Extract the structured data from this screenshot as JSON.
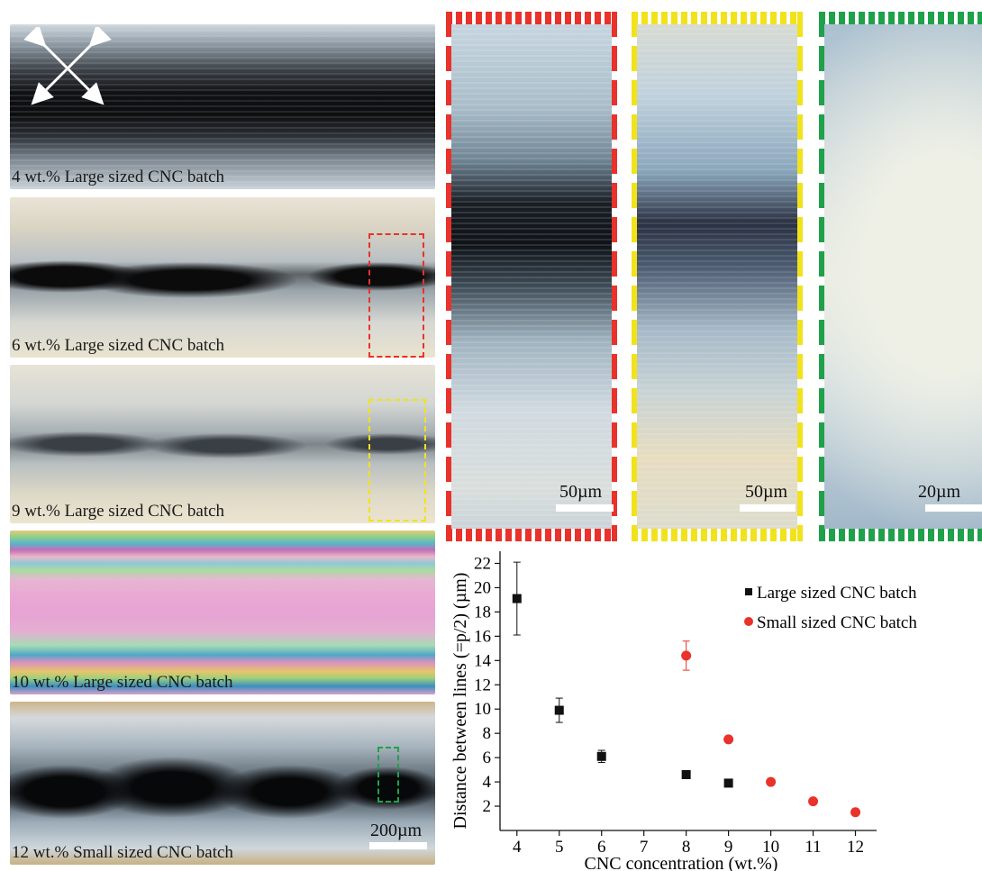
{
  "panels": [
    {
      "caption": "4 wt.% Large sized CNC batch"
    },
    {
      "caption": "6 wt.% Large sized CNC batch"
    },
    {
      "caption": "9 wt.% Large sized CNC batch"
    },
    {
      "caption": "10 wt.% Large sized CNC batch"
    },
    {
      "caption": "12 wt.% Small sized CNC batch"
    }
  ],
  "scalebars": {
    "main": "200µm",
    "red": "50µm",
    "yellow": "50µm",
    "green": "20µm"
  },
  "colors": {
    "red": "#e8322b",
    "yellow": "#f2e21b",
    "green": "#1fa14a",
    "large_series": "#111111",
    "small_series": "#e8322b"
  },
  "chart_data": {
    "type": "scatter",
    "xlabel": "CNC concentration (wt.%)",
    "ylabel": "Distance between lines (=p/2) (µm)",
    "xlim": [
      3.6,
      12.5
    ],
    "ylim": [
      0,
      23
    ],
    "xticks": [
      4,
      5,
      6,
      7,
      8,
      9,
      10,
      11,
      12
    ],
    "yticks": [
      2,
      4,
      6,
      8,
      10,
      12,
      14,
      16,
      18,
      20,
      22
    ],
    "legend_position": "top-right",
    "series": [
      {
        "name": "Large sized CNC batch",
        "marker": "square",
        "color": "#111111",
        "points": [
          {
            "x": 4,
            "y": 19.1,
            "err": 3.0
          },
          {
            "x": 5,
            "y": 9.9,
            "err": 1.0
          },
          {
            "x": 6,
            "y": 6.1,
            "err": 0.5
          },
          {
            "x": 8,
            "y": 4.6,
            "err": 0
          },
          {
            "x": 9,
            "y": 3.9,
            "err": 0
          }
        ]
      },
      {
        "name": "Small sized CNC batch",
        "marker": "circle",
        "color": "#e8322b",
        "points": [
          {
            "x": 8,
            "y": 14.4,
            "err": 1.2
          },
          {
            "x": 9,
            "y": 7.5,
            "err": 0
          },
          {
            "x": 10,
            "y": 4.0,
            "err": 0
          },
          {
            "x": 11,
            "y": 2.4,
            "err": 0
          },
          {
            "x": 12,
            "y": 1.5,
            "err": 0
          }
        ]
      }
    ]
  }
}
